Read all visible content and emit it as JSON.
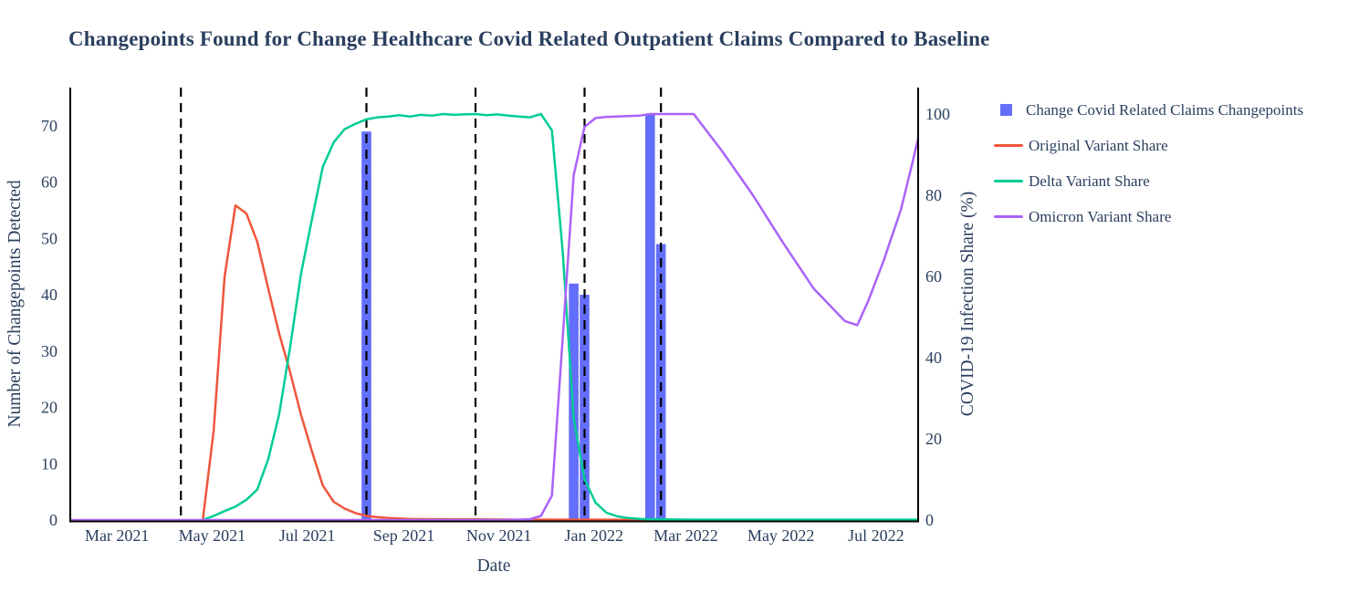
{
  "title": "Changepoints Found for Change Healthcare Covid Related Outpatient Claims Compared to Baseline",
  "style": {
    "text_color": "#2a3f5f",
    "axis_color": "#000000",
    "background": "#ffffff",
    "bar_color": "#636efa",
    "vline_color": "#000000"
  },
  "legend": {
    "items": [
      {
        "label": "Change Covid Related Claims Changepoints",
        "color": "#636efa",
        "swatch": "square"
      },
      {
        "label": "Original Variant Share",
        "color": "#ef553b",
        "swatch": "line"
      },
      {
        "label": "Delta Variant Share",
        "color": "#00cc96",
        "swatch": "line"
      },
      {
        "label": "Omicron Variant Share",
        "color": "#ab63fa",
        "swatch": "line"
      }
    ]
  },
  "chart_data": {
    "type": "mixed-bar-line",
    "grid": false,
    "legend_position": "right",
    "x_axis": {
      "title": "Date",
      "range": [
        "2021-01-30",
        "2022-07-28"
      ],
      "ticks": [
        {
          "date": "2021-03-01",
          "label": "Mar 2021"
        },
        {
          "date": "2021-05-01",
          "label": "May 2021"
        },
        {
          "date": "2021-07-01",
          "label": "Jul 2021"
        },
        {
          "date": "2021-09-01",
          "label": "Sep 2021"
        },
        {
          "date": "2021-11-01",
          "label": "Nov 2021"
        },
        {
          "date": "2022-01-01",
          "label": "Jan 2022"
        },
        {
          "date": "2022-03-01",
          "label": "Mar 2022"
        },
        {
          "date": "2022-05-01",
          "label": "May 2022"
        },
        {
          "date": "2022-07-01",
          "label": "Jul 2022"
        }
      ]
    },
    "y_left_axis": {
      "title": "Number of Changepoints Detected",
      "range": [
        0,
        76.8
      ],
      "ticks": [
        0,
        10,
        20,
        30,
        40,
        50,
        60,
        70
      ]
    },
    "y_right_axis": {
      "title": "COVID-19 Infection Share (%)",
      "range": [
        0,
        106.5
      ],
      "ticks": [
        0,
        20,
        40,
        60,
        80,
        100
      ]
    },
    "changepoint_vlines": {
      "style": "dashed",
      "dates": [
        "2021-04-11",
        "2021-08-08",
        "2021-10-17",
        "2021-12-26",
        "2022-02-13"
      ]
    },
    "bars": {
      "name": "Change Covid Related Claims Changepoints",
      "axis": "left",
      "data": [
        {
          "date": "2021-08-08",
          "count": 69
        },
        {
          "date": "2021-12-19",
          "count": 42
        },
        {
          "date": "2021-12-26",
          "count": 40
        },
        {
          "date": "2022-02-06",
          "count": 72
        },
        {
          "date": "2022-02-13",
          "count": 49
        }
      ]
    },
    "series": [
      {
        "name": "Original Variant Share",
        "color": "#ef553b",
        "axis": "right",
        "points": [
          [
            "2021-04-25",
            0
          ],
          [
            "2021-05-02",
            22
          ],
          [
            "2021-05-09",
            60
          ],
          [
            "2021-05-16",
            77.5
          ],
          [
            "2021-05-23",
            75.5
          ],
          [
            "2021-05-30",
            68.5
          ],
          [
            "2021-06-06",
            57
          ],
          [
            "2021-06-13",
            46
          ],
          [
            "2021-06-20",
            36.5
          ],
          [
            "2021-06-27",
            26
          ],
          [
            "2021-07-04",
            17
          ],
          [
            "2021-07-11",
            8.5
          ],
          [
            "2021-07-18",
            4.5
          ],
          [
            "2021-07-25",
            2.8
          ],
          [
            "2021-08-01",
            1.7
          ],
          [
            "2021-08-08",
            1.0
          ],
          [
            "2021-08-15",
            0.7
          ],
          [
            "2021-08-22",
            0.5
          ],
          [
            "2021-08-29",
            0.35
          ],
          [
            "2021-09-05",
            0.25
          ],
          [
            "2021-09-19",
            0.2
          ],
          [
            "2021-10-17",
            0.15
          ],
          [
            "2021-11-14",
            0.1
          ],
          [
            "2021-12-12",
            0.1
          ],
          [
            "2022-01-09",
            0.1
          ],
          [
            "2022-02-20",
            0
          ]
        ]
      },
      {
        "name": "Delta Variant Share",
        "color": "#00cc96",
        "axis": "right",
        "points": [
          [
            "2021-04-25",
            0
          ],
          [
            "2021-05-02",
            1
          ],
          [
            "2021-05-09",
            2.2
          ],
          [
            "2021-05-16",
            3.3
          ],
          [
            "2021-05-23",
            5
          ],
          [
            "2021-05-30",
            7.5
          ],
          [
            "2021-06-06",
            15
          ],
          [
            "2021-06-13",
            26
          ],
          [
            "2021-06-20",
            42.5
          ],
          [
            "2021-06-27",
            60.5
          ],
          [
            "2021-07-04",
            74
          ],
          [
            "2021-07-11",
            87
          ],
          [
            "2021-07-18",
            93
          ],
          [
            "2021-07-25",
            96.3
          ],
          [
            "2021-08-01",
            97.6
          ],
          [
            "2021-08-08",
            98.7
          ],
          [
            "2021-08-15",
            99.2
          ],
          [
            "2021-08-22",
            99.4
          ],
          [
            "2021-08-29",
            99.7
          ],
          [
            "2021-09-05",
            99.4
          ],
          [
            "2021-09-12",
            99.8
          ],
          [
            "2021-09-19",
            99.6
          ],
          [
            "2021-09-26",
            100
          ],
          [
            "2021-10-03",
            99.8
          ],
          [
            "2021-10-10",
            99.9
          ],
          [
            "2021-10-17",
            100
          ],
          [
            "2021-10-24",
            99.7
          ],
          [
            "2021-10-31",
            99.9
          ],
          [
            "2021-11-07",
            99.6
          ],
          [
            "2021-11-14",
            99.4
          ],
          [
            "2021-11-21",
            99.2
          ],
          [
            "2021-11-28",
            100
          ],
          [
            "2021-12-05",
            96
          ],
          [
            "2021-12-12",
            66
          ],
          [
            "2021-12-19",
            25
          ],
          [
            "2021-12-26",
            10
          ],
          [
            "2022-01-02",
            4.3
          ],
          [
            "2022-01-09",
            1.8
          ],
          [
            "2022-01-16",
            0.9
          ],
          [
            "2022-01-23",
            0.5
          ],
          [
            "2022-01-30",
            0.3
          ],
          [
            "2022-02-06",
            0.2
          ],
          [
            "2022-03-06",
            0.1
          ],
          [
            "2022-05-01",
            0.1
          ],
          [
            "2022-07-28",
            0.1
          ]
        ]
      },
      {
        "name": "Omicron Variant Share",
        "color": "#ab63fa",
        "axis": "right",
        "points": [
          [
            "2021-01-30",
            0
          ],
          [
            "2021-06-06",
            0
          ],
          [
            "2021-09-05",
            0
          ],
          [
            "2021-11-07",
            0
          ],
          [
            "2021-11-14",
            0.1
          ],
          [
            "2021-11-21",
            0.2
          ],
          [
            "2021-11-28",
            1
          ],
          [
            "2021-12-05",
            6
          ],
          [
            "2021-12-12",
            45
          ],
          [
            "2021-12-19",
            85
          ],
          [
            "2021-12-26",
            96.8
          ],
          [
            "2022-01-02",
            99
          ],
          [
            "2022-01-09",
            99.3
          ],
          [
            "2022-01-23",
            99.5
          ],
          [
            "2022-01-30",
            99.6
          ],
          [
            "2022-02-06",
            100
          ],
          [
            "2022-03-06",
            100
          ],
          [
            "2022-03-24",
            91
          ],
          [
            "2022-04-13",
            80
          ],
          [
            "2022-05-02",
            68.5
          ],
          [
            "2022-05-22",
            57
          ],
          [
            "2022-06-11",
            49
          ],
          [
            "2022-06-19",
            48
          ],
          [
            "2022-06-26",
            54
          ],
          [
            "2022-07-06",
            64
          ],
          [
            "2022-07-17",
            76.5
          ],
          [
            "2022-07-24",
            87.5
          ],
          [
            "2022-07-28",
            94
          ]
        ]
      }
    ]
  }
}
